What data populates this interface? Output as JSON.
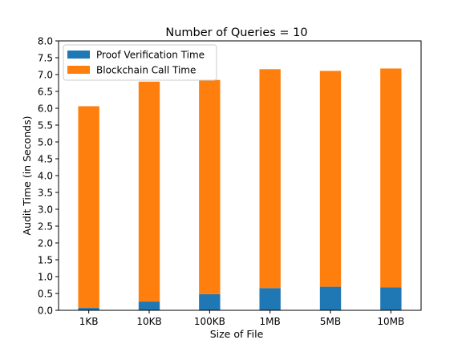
{
  "chart_data": {
    "type": "bar",
    "stacked": true,
    "title": "Number of Queries = 10",
    "xlabel": "Size of File",
    "ylabel": "Audit Time (in Seconds)",
    "categories": [
      "1KB",
      "10KB",
      "100KB",
      "1MB",
      "5MB",
      "10MB"
    ],
    "series": [
      {
        "name": "Proof Verification Time",
        "color": "#1f77b4",
        "values": [
          0.07,
          0.26,
          0.48,
          0.66,
          0.7,
          0.68
        ]
      },
      {
        "name": "Blockchain Call Time",
        "color": "#ff7f0e",
        "values": [
          5.99,
          6.53,
          6.36,
          6.5,
          6.41,
          6.5
        ]
      }
    ],
    "ylim": [
      0,
      8
    ],
    "yticks": [
      0.0,
      0.5,
      1.0,
      1.5,
      2.0,
      2.5,
      3.0,
      3.5,
      4.0,
      4.5,
      5.0,
      5.5,
      6.0,
      6.5,
      7.0,
      7.5,
      8.0
    ],
    "ytick_labels": [
      "0.0",
      "0.5",
      "1.0",
      "1.5",
      "2.0",
      "2.5",
      "3.0",
      "3.5",
      "4.0",
      "4.5",
      "5.0",
      "5.5",
      "6.0",
      "6.5",
      "7.0",
      "7.5",
      "8.0"
    ],
    "grid": false,
    "legend_position": "top-left"
  }
}
